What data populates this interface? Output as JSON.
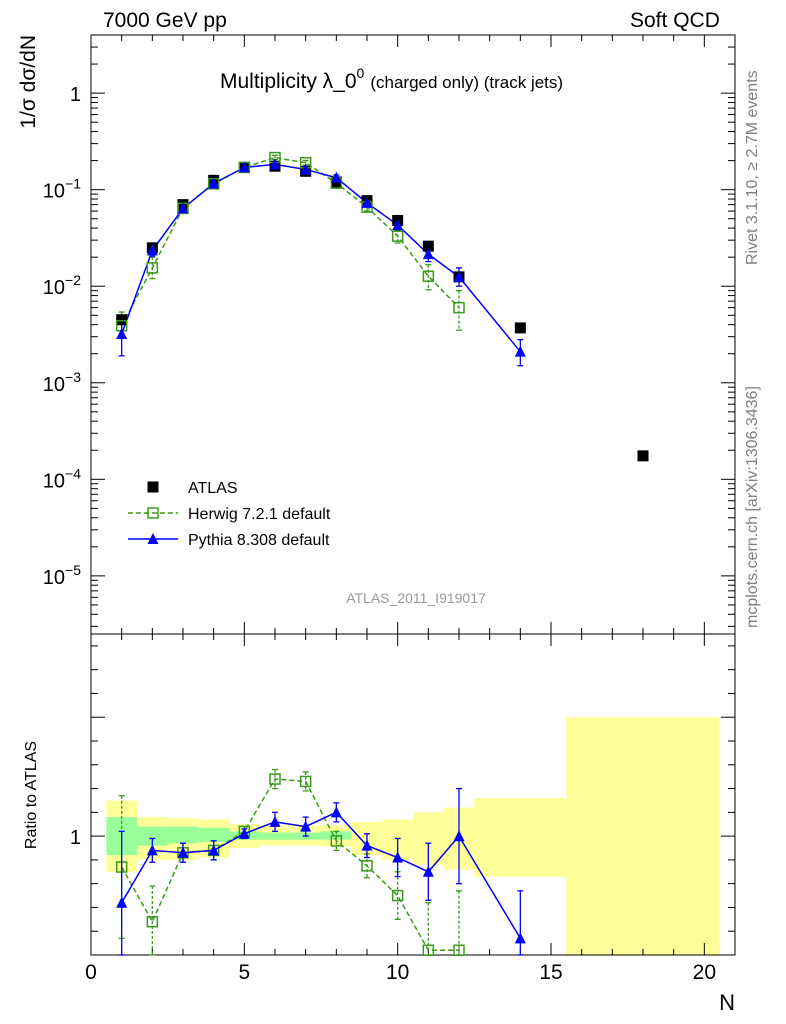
{
  "header": {
    "left": "7000 GeV pp",
    "right": "Soft QCD"
  },
  "side_text": {
    "rivet": "Rivet 3.1.10, ≥ 2.7M events",
    "mcplots": "mcplots.cern.ch [arXiv:1306.3436]"
  },
  "chart_data": [
    {
      "type": "scatter",
      "title": "Multiplicity λ_0",
      "title_sup": "0",
      "title_small": "(charged only) (track jets)",
      "ylabel": "1/σ dσ/dN",
      "watermark": "ATLAS_2011_I919017",
      "yscale": "log",
      "xlim": [
        0,
        21
      ],
      "ylim": [
        2.5e-06,
        4
      ],
      "y_tick_labels": [
        {
          "base": "10",
          "exp": "−5"
        },
        {
          "base": "10",
          "exp": "−4"
        },
        {
          "base": "10",
          "exp": "−3"
        },
        {
          "base": "10",
          "exp": "−2"
        },
        {
          "base": "10",
          "exp": "−1"
        },
        {
          "base": "1",
          "exp": ""
        }
      ],
      "legend": {
        "placement": "lower-left",
        "entries": [
          "ATLAS",
          "Herwig 7.2.1 default",
          "Pythia 8.308 default"
        ]
      },
      "series": [
        {
          "name": "ATLAS",
          "color": "#000000",
          "marker": "square-filled",
          "x": [
            1,
            2,
            3,
            4,
            5,
            6,
            7,
            8,
            9,
            10,
            11,
            12,
            14,
            18
          ],
          "y": [
            0.0045,
            0.025,
            0.07,
            0.125,
            0.17,
            0.175,
            0.155,
            0.12,
            0.077,
            0.048,
            0.026,
            0.0125,
            0.0037,
            0.000175
          ]
        },
        {
          "name": "Herwig 7.2.1 default",
          "color": "#3a9a1a",
          "marker": "square-open",
          "line": "dashed",
          "x": [
            1,
            2,
            3,
            4,
            5,
            6,
            7,
            8,
            9,
            10,
            11,
            12
          ],
          "y": [
            0.0039,
            0.0155,
            0.064,
            0.115,
            0.17,
            0.215,
            0.19,
            0.117,
            0.066,
            0.033,
            0.0127,
            0.006
          ],
          "err_lo": [
            0.0009,
            0.0035,
            0.006,
            0.007,
            0.006,
            0.01,
            0.01,
            0.007,
            0.006,
            0.005,
            0.0035,
            0.0025
          ],
          "err_hi": [
            0.0015,
            0.0045,
            0.007,
            0.008,
            0.007,
            0.012,
            0.011,
            0.008,
            0.007,
            0.006,
            0.004,
            0.003
          ]
        },
        {
          "name": "Pythia 8.308 default",
          "color": "#0000ff",
          "marker": "triangle",
          "line": "solid",
          "x": [
            1,
            2,
            3,
            4,
            5,
            6,
            7,
            8,
            9,
            10,
            11,
            12,
            14
          ],
          "y": [
            0.0032,
            0.0235,
            0.064,
            0.116,
            0.17,
            0.183,
            0.162,
            0.133,
            0.073,
            0.043,
            0.0215,
            0.0125,
            0.0021
          ],
          "err_lo": [
            0.0013,
            0.003,
            0.006,
            0.007,
            0.006,
            0.009,
            0.008,
            0.008,
            0.006,
            0.005,
            0.0035,
            0.0025,
            0.0006
          ],
          "err_hi": [
            0.0014,
            0.0035,
            0.006,
            0.008,
            0.007,
            0.01,
            0.009,
            0.009,
            0.007,
            0.006,
            0.004,
            0.003,
            0.0007
          ]
        }
      ]
    },
    {
      "type": "scatter",
      "ylabel": "Ratio to ATLAS",
      "xlabel": "N",
      "xlim": [
        0,
        21
      ],
      "ylim": [
        0.5,
        1.85
      ],
      "x_ticks": [
        0,
        5,
        10,
        15,
        20
      ],
      "y_ticks": [
        1
      ],
      "bands": {
        "bins": [
          [
            0.5,
            1.5
          ],
          [
            1.5,
            2.5
          ],
          [
            2.5,
            3.5
          ],
          [
            3.5,
            4.5
          ],
          [
            4.5,
            5.5
          ],
          [
            5.5,
            6.5
          ],
          [
            6.5,
            7.5
          ],
          [
            7.5,
            8.5
          ],
          [
            8.5,
            9.5
          ],
          [
            9.5,
            10.5
          ],
          [
            10.5,
            11.5
          ],
          [
            11.5,
            12.5
          ],
          [
            12.5,
            15.5
          ],
          [
            15.5,
            20.5
          ]
        ],
        "outer_lo": [
          0.85,
          0.9,
          0.9,
          0.91,
          0.95,
          0.96,
          0.96,
          0.955,
          0.92,
          0.9,
          0.88,
          0.86,
          0.83,
          0.5
        ],
        "outer_hi": [
          1.15,
          1.08,
          1.075,
          1.07,
          1.05,
          1.045,
          1.045,
          1.045,
          1.06,
          1.07,
          1.1,
          1.12,
          1.16,
          1.5
        ],
        "inner_lo": [
          0.92,
          0.96,
          0.97,
          0.975,
          0.985,
          0.985,
          0.985,
          0.985
        ],
        "inner_hi": [
          1.08,
          1.04,
          1.04,
          1.035,
          1.02,
          1.015,
          1.015,
          1.02
        ],
        "outer_color": "#ffff99",
        "inner_color": "#99ff99"
      },
      "series": [
        {
          "name": "Herwig 7.2.1 default",
          "color": "#3a9a1a",
          "marker": "square-open",
          "line": "dashed",
          "x": [
            1,
            2,
            3,
            4,
            5,
            6,
            7,
            8,
            9,
            10,
            11,
            12
          ],
          "y": [
            0.87,
            0.64,
            0.93,
            0.94,
            1.02,
            1.24,
            1.23,
            0.98,
            0.875,
            0.75,
            0.52,
            0.52
          ],
          "err_lo": [
            0.3,
            0.15,
            0.04,
            0.04,
            0.02,
            0.04,
            0.04,
            0.04,
            0.05,
            0.1,
            0.2,
            0.25
          ],
          "err_hi": [
            0.3,
            0.15,
            0.04,
            0.04,
            0.02,
            0.04,
            0.04,
            0.04,
            0.05,
            0.1,
            0.2,
            0.25
          ]
        },
        {
          "name": "Pythia 8.308 default",
          "color": "#0000ff",
          "marker": "triangle",
          "line": "solid",
          "x": [
            1,
            2,
            3,
            4,
            5,
            6,
            7,
            8,
            9,
            10,
            11,
            12,
            14
          ],
          "y": [
            0.72,
            0.94,
            0.93,
            0.94,
            1.01,
            1.06,
            1.04,
            1.1,
            0.96,
            0.91,
            0.85,
            1.0,
            0.57
          ],
          "err_lo": [
            0.3,
            0.05,
            0.04,
            0.04,
            0.02,
            0.04,
            0.04,
            0.04,
            0.05,
            0.08,
            0.12,
            0.2,
            0.2
          ],
          "err_hi": [
            0.3,
            0.05,
            0.04,
            0.04,
            0.02,
            0.04,
            0.04,
            0.04,
            0.05,
            0.08,
            0.12,
            0.2,
            0.2
          ]
        }
      ]
    }
  ]
}
